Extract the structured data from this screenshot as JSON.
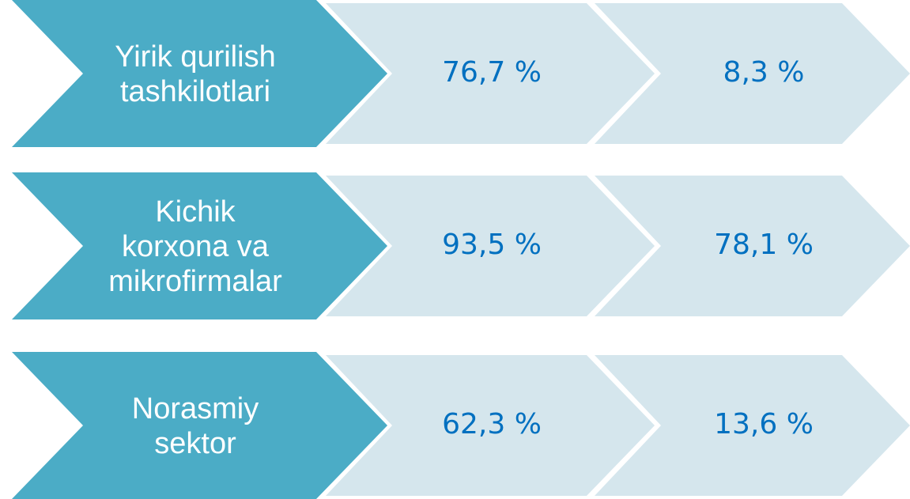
{
  "rows": [
    {
      "label": [
        "Yirik qurilish",
        "tashkilotlari"
      ],
      "values": [
        "76,7 %",
        "8,3 %"
      ]
    },
    {
      "label": [
        "Kichik",
        "korxona va",
        "mikrofirmalar"
      ],
      "values": [
        "93,5 %",
        "78,1 %"
      ]
    },
    {
      "label": [
        "Norasmiy",
        "sektor"
      ],
      "values": [
        "62,3 %",
        "13,6 %"
      ]
    }
  ]
}
